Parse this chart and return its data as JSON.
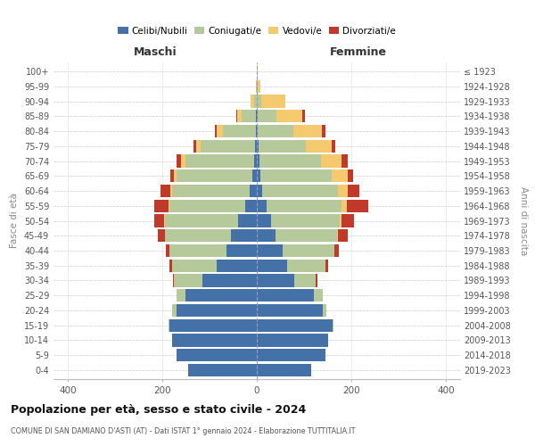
{
  "age_groups": [
    "0-4",
    "5-9",
    "10-14",
    "15-19",
    "20-24",
    "25-29",
    "30-34",
    "35-39",
    "40-44",
    "45-49",
    "50-54",
    "55-59",
    "60-64",
    "65-69",
    "70-74",
    "75-79",
    "80-84",
    "85-89",
    "90-94",
    "95-99",
    "100+"
  ],
  "birth_years": [
    "2019-2023",
    "2014-2018",
    "2009-2013",
    "2004-2008",
    "1999-2003",
    "1994-1998",
    "1989-1993",
    "1984-1988",
    "1979-1983",
    "1974-1978",
    "1969-1973",
    "1964-1968",
    "1959-1963",
    "1954-1958",
    "1949-1953",
    "1944-1948",
    "1939-1943",
    "1934-1938",
    "1929-1933",
    "1924-1928",
    "≤ 1923"
  ],
  "male": {
    "celibi": [
      145,
      170,
      180,
      185,
      170,
      150,
      115,
      85,
      65,
      55,
      40,
      25,
      15,
      10,
      5,
      3,
      2,
      2,
      0,
      0,
      0
    ],
    "coniugati": [
      0,
      0,
      0,
      2,
      10,
      20,
      60,
      95,
      120,
      140,
      155,
      160,
      165,
      160,
      145,
      115,
      70,
      30,
      5,
      1,
      0
    ],
    "vedovi": [
      0,
      0,
      0,
      0,
      0,
      0,
      0,
      0,
      0,
      0,
      1,
      2,
      3,
      5,
      10,
      10,
      12,
      10,
      8,
      1,
      0
    ],
    "divorziati": [
      0,
      0,
      0,
      0,
      0,
      0,
      3,
      5,
      8,
      15,
      20,
      30,
      20,
      8,
      10,
      5,
      5,
      2,
      0,
      0,
      0
    ]
  },
  "female": {
    "nubili": [
      115,
      145,
      150,
      160,
      140,
      120,
      80,
      65,
      55,
      40,
      30,
      20,
      12,
      8,
      5,
      3,
      2,
      2,
      0,
      0,
      0
    ],
    "coniugate": [
      0,
      0,
      0,
      2,
      8,
      20,
      45,
      80,
      110,
      130,
      145,
      160,
      160,
      150,
      130,
      100,
      75,
      40,
      10,
      2,
      0
    ],
    "vedove": [
      0,
      0,
      0,
      0,
      0,
      0,
      0,
      0,
      0,
      2,
      5,
      10,
      20,
      35,
      45,
      55,
      60,
      55,
      50,
      5,
      1
    ],
    "divorziate": [
      0,
      0,
      0,
      0,
      0,
      0,
      3,
      5,
      8,
      20,
      25,
      45,
      25,
      10,
      12,
      8,
      8,
      5,
      0,
      0,
      0
    ]
  },
  "colors": {
    "celibi": "#4472a8",
    "coniugati": "#b5c99a",
    "vedovi": "#f5c96e",
    "divorziati": "#c0392b"
  },
  "title": "Popolazione per età, sesso e stato civile - 2024",
  "subtitle": "COMUNE DI SAN DAMIANO D'ASTI (AT) - Dati ISTAT 1° gennaio 2024 - Elaborazione TUTTITALIA.IT",
  "xlabel_left": "Maschi",
  "xlabel_right": "Femmine",
  "ylabel_left": "Fasce di età",
  "ylabel_right": "Anni di nascita",
  "xlim": 430,
  "legend_labels": [
    "Celibi/Nubili",
    "Coniugati/e",
    "Vedovi/e",
    "Divorziati/e"
  ],
  "bg_color": "#ffffff",
  "plot_bg": "#ffffff"
}
